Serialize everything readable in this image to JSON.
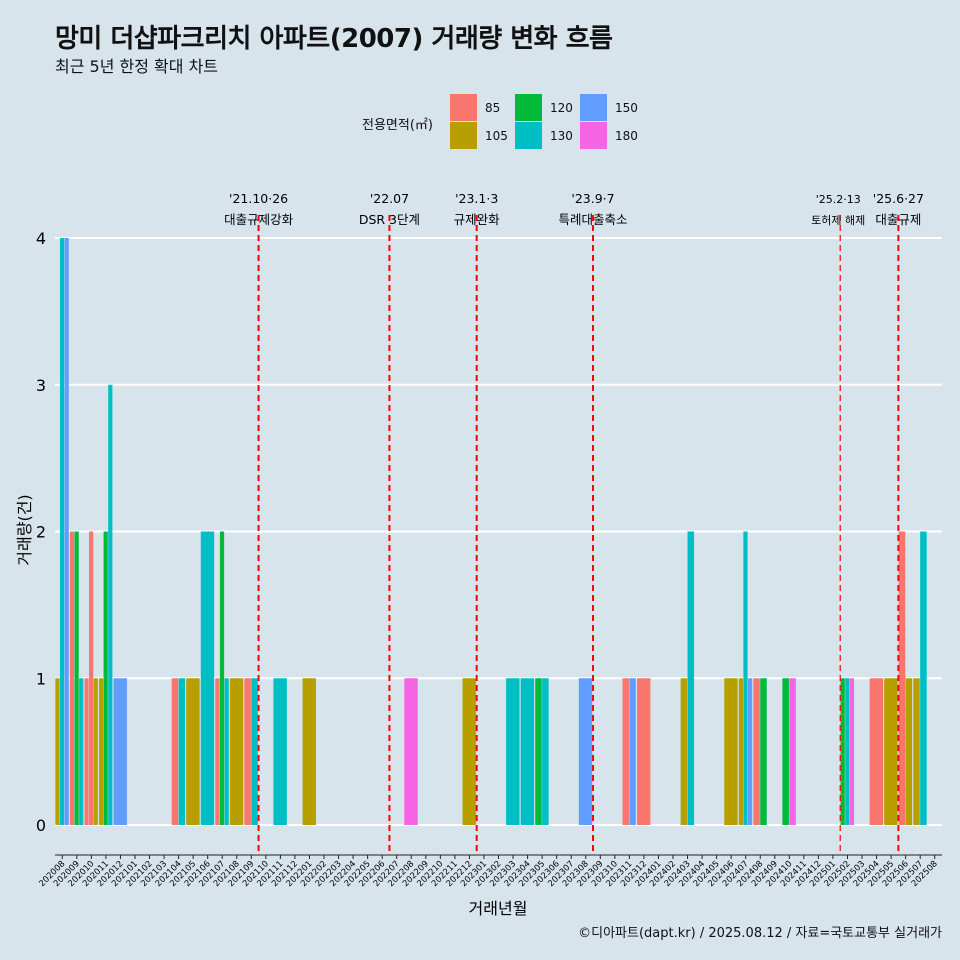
{
  "header": {
    "title": "망미 더샵파크리치 아파트(2007) 거래량 변화 흐름",
    "subtitle": "최근 5년 한정 확대 차트",
    "caption": "©디아파트(dapt.kr) / 2025.08.12 / 자료=국토교통부 실거래가"
  },
  "legend": {
    "title": "전용면적(㎡)",
    "items": [
      {
        "label": "85",
        "color": "#F8766D"
      },
      {
        "label": "105",
        "color": "#B79F00"
      },
      {
        "label": "120",
        "color": "#00BA38"
      },
      {
        "label": "130",
        "color": "#00BFC4"
      },
      {
        "label": "150",
        "color": "#619CFF"
      },
      {
        "label": "180",
        "color": "#F564E3"
      }
    ]
  },
  "chart_data": {
    "type": "bar",
    "title": "망미 더샵파크리치 아파트(2007) 거래량 변화 흐름",
    "xlabel": "거래년월",
    "ylabel": "거래량(건)",
    "ylim": [
      0,
      4
    ],
    "yticks": [
      0,
      1,
      2,
      3,
      4
    ],
    "grid": true,
    "categories": [
      "202008",
      "202009",
      "202010",
      "202011",
      "202012",
      "202101",
      "202102",
      "202103",
      "202104",
      "202105",
      "202106",
      "202107",
      "202108",
      "202109",
      "202110",
      "202111",
      "202112",
      "202201",
      "202202",
      "202203",
      "202204",
      "202205",
      "202206",
      "202207",
      "202208",
      "202209",
      "202210",
      "202211",
      "202212",
      "202301",
      "202302",
      "202303",
      "202304",
      "202305",
      "202306",
      "202307",
      "202308",
      "202309",
      "202310",
      "202311",
      "202312",
      "202401",
      "202402",
      "202403",
      "202404",
      "202405",
      "202406",
      "202407",
      "202408",
      "202409",
      "202410",
      "202411",
      "202412",
      "202501",
      "202502",
      "202503",
      "202504",
      "202505",
      "202506",
      "202507",
      "202508"
    ],
    "bars": [
      {
        "month": "202008",
        "area": "105",
        "value": 1
      },
      {
        "month": "202008",
        "area": "130",
        "value": 4
      },
      {
        "month": "202008",
        "area": "150",
        "value": 4
      },
      {
        "month": "202009",
        "area": "85",
        "value": 2
      },
      {
        "month": "202009",
        "area": "120",
        "value": 2
      },
      {
        "month": "202009",
        "area": "130",
        "value": 1
      },
      {
        "month": "202010",
        "area": "85",
        "value": 1
      },
      {
        "month": "202010",
        "area": "105",
        "value": 1
      },
      {
        "month": "202010",
        "area": "85",
        "value": 2
      },
      {
        "month": "202011",
        "area": "120",
        "value": 2
      },
      {
        "month": "202011",
        "area": "130",
        "value": 3
      },
      {
        "month": "202011",
        "area": "105",
        "value": 1
      },
      {
        "month": "202012",
        "area": "150",
        "value": 1
      },
      {
        "month": "202104",
        "area": "85",
        "value": 1
      },
      {
        "month": "202104",
        "area": "130",
        "value": 1
      },
      {
        "month": "202105",
        "area": "105",
        "value": 1
      },
      {
        "month": "202106",
        "area": "130",
        "value": 2
      },
      {
        "month": "202107",
        "area": "85",
        "value": 1
      },
      {
        "month": "202107",
        "area": "120",
        "value": 2
      },
      {
        "month": "202107",
        "area": "130",
        "value": 1
      },
      {
        "month": "202108",
        "area": "105",
        "value": 1
      },
      {
        "month": "202109",
        "area": "85",
        "value": 1
      },
      {
        "month": "202109",
        "area": "130",
        "value": 1
      },
      {
        "month": "202111",
        "area": "130",
        "value": 1
      },
      {
        "month": "202201",
        "area": "105",
        "value": 1
      },
      {
        "month": "202208",
        "area": "180",
        "value": 1
      },
      {
        "month": "202212",
        "area": "105",
        "value": 1
      },
      {
        "month": "202303",
        "area": "130",
        "value": 1
      },
      {
        "month": "202304",
        "area": "130",
        "value": 1
      },
      {
        "month": "202305",
        "area": "120",
        "value": 1
      },
      {
        "month": "202305",
        "area": "130",
        "value": 1
      },
      {
        "month": "202308",
        "area": "150",
        "value": 1
      },
      {
        "month": "202311",
        "area": "85",
        "value": 1
      },
      {
        "month": "202311",
        "area": "150",
        "value": 1
      },
      {
        "month": "202312",
        "area": "85",
        "value": 1
      },
      {
        "month": "202403",
        "area": "105",
        "value": 1
      },
      {
        "month": "202403",
        "area": "130",
        "value": 2
      },
      {
        "month": "202406",
        "area": "105",
        "value": 1
      },
      {
        "month": "202407",
        "area": "105",
        "value": 1
      },
      {
        "month": "202407",
        "area": "130",
        "value": 2
      },
      {
        "month": "202407",
        "area": "150",
        "value": 1
      },
      {
        "month": "202408",
        "area": "120",
        "value": 1
      },
      {
        "month": "202408",
        "area": "85",
        "value": 1
      },
      {
        "month": "202410",
        "area": "120",
        "value": 1
      },
      {
        "month": "202410",
        "area": "180",
        "value": 1
      },
      {
        "month": "202502",
        "area": "120",
        "value": 1
      },
      {
        "month": "202502",
        "area": "130",
        "value": 1
      },
      {
        "month": "202502",
        "area": "180",
        "value": 1
      },
      {
        "month": "202504",
        "area": "85",
        "value": 1
      },
      {
        "month": "202505",
        "area": "105",
        "value": 1
      },
      {
        "month": "202506",
        "area": "105",
        "value": 1
      },
      {
        "month": "202506",
        "area": "85",
        "value": 2
      },
      {
        "month": "202507",
        "area": "105",
        "value": 1
      },
      {
        "month": "202507",
        "area": "130",
        "value": 2
      }
    ],
    "annotations": [
      {
        "x": "202110",
        "line1": "'21.10·26",
        "line2": "대출규제강화"
      },
      {
        "x": "202207",
        "line1": "'22.07",
        "line2": "DSR 3단계"
      },
      {
        "x": "202301",
        "line1": "'23.1·3",
        "line2": "규제완화"
      },
      {
        "x": "202309",
        "line1": "'23.9·7",
        "line2": "특례대출축소"
      },
      {
        "x": "202502",
        "line1": "'25.2·13",
        "line2": "토허제 해제"
      },
      {
        "x": "202506",
        "line1": "'25.6·27",
        "line2": "대출규제"
      }
    ]
  }
}
